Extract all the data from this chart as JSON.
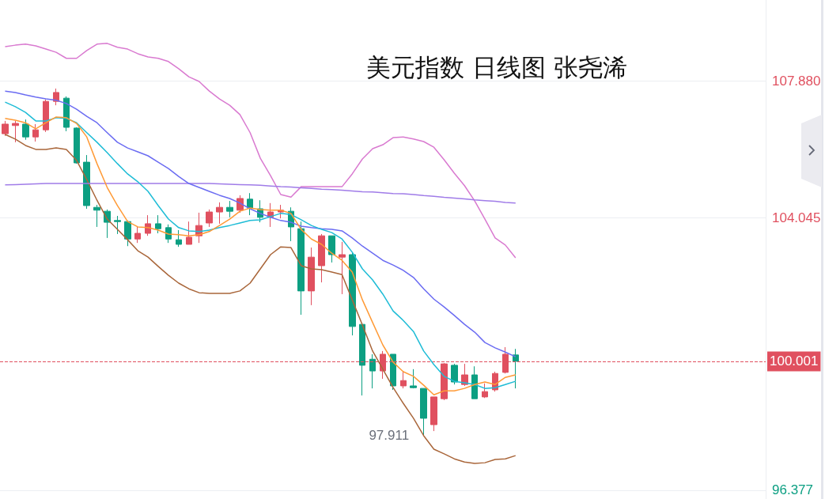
{
  "chart_data": {
    "type": "candlestick",
    "title": "美元指数 日线图 张尧浠",
    "categories": [
      null,
      null,
      null,
      null,
      null,
      null,
      null,
      null,
      null,
      null,
      null,
      null,
      null,
      null,
      null,
      null,
      null,
      null,
      null,
      null,
      null,
      null,
      null,
      null,
      null,
      null,
      null,
      null,
      null,
      null,
      null,
      null,
      null,
      null,
      null,
      null,
      null,
      null,
      null,
      null,
      null,
      null,
      null,
      null,
      null,
      null,
      null,
      null,
      null,
      null,
      null
    ],
    "ohlc": [
      [
        106.4,
        106.76,
        106.34,
        106.67
      ],
      [
        106.63,
        106.76,
        106.16,
        106.69
      ],
      [
        106.67,
        106.8,
        106.23,
        106.31
      ],
      [
        106.31,
        106.67,
        106.18,
        106.51
      ],
      [
        106.51,
        107.36,
        106.45,
        107.31
      ],
      [
        107.31,
        107.67,
        107.2,
        107.56
      ],
      [
        107.4,
        107.45,
        106.47,
        106.58
      ],
      [
        106.56,
        106.58,
        105.56,
        105.58
      ],
      [
        105.6,
        105.8,
        104.29,
        104.38
      ],
      [
        104.33,
        104.4,
        103.78,
        104.25
      ],
      [
        104.22,
        104.27,
        103.47,
        103.91
      ],
      [
        103.96,
        104.09,
        103.58,
        103.93
      ],
      [
        103.93,
        103.96,
        103.24,
        103.44
      ],
      [
        103.44,
        103.78,
        103.33,
        103.6
      ],
      [
        103.6,
        104.11,
        103.53,
        103.87
      ],
      [
        103.87,
        104.11,
        103.6,
        103.73
      ],
      [
        103.76,
        103.85,
        103.33,
        103.44
      ],
      [
        103.42,
        103.69,
        103.22,
        103.29
      ],
      [
        103.29,
        103.93,
        103.29,
        103.49
      ],
      [
        103.53,
        104.18,
        103.33,
        103.82
      ],
      [
        103.89,
        104.27,
        103.78,
        104.2
      ],
      [
        104.2,
        104.47,
        103.87,
        104.33
      ],
      [
        104.33,
        104.51,
        104.05,
        104.22
      ],
      [
        104.25,
        104.67,
        104.18,
        104.58
      ],
      [
        104.56,
        104.73,
        104.11,
        104.31
      ],
      [
        104.29,
        104.53,
        103.91,
        104.05
      ],
      [
        104.05,
        104.45,
        103.78,
        104.2
      ],
      [
        104.2,
        104.4,
        104.02,
        104.25
      ],
      [
        104.22,
        104.33,
        103.38,
        103.78
      ],
      [
        103.73,
        103.93,
        101.31,
        101.98
      ],
      [
        101.98,
        103.2,
        101.58,
        102.93
      ],
      [
        102.69,
        103.58,
        102.22,
        103.53
      ],
      [
        103.53,
        103.53,
        102.78,
        103.0
      ],
      [
        102.93,
        103.36,
        101.89,
        103.0
      ],
      [
        103.0,
        103.07,
        100.73,
        100.98
      ],
      [
        101.04,
        101.04,
        99.04,
        99.89
      ],
      [
        100.06,
        100.2,
        99.24,
        99.73
      ],
      [
        99.73,
        100.29,
        99.51,
        100.2
      ],
      [
        100.2,
        100.2,
        99.2,
        99.31
      ],
      [
        99.31,
        99.73,
        99.24,
        99.46
      ],
      [
        99.31,
        99.78,
        99.24,
        99.26
      ],
      [
        99.24,
        99.24,
        97.911,
        98.4
      ],
      [
        98.22,
        99.0,
        98.04,
        99.0
      ],
      [
        98.95,
        99.95,
        98.91,
        99.93
      ],
      [
        99.89,
        99.93,
        99.35,
        99.42
      ],
      [
        99.35,
        99.93,
        99.31,
        99.62
      ],
      [
        99.62,
        99.86,
        98.95,
        98.95
      ],
      [
        99.0,
        99.38,
        98.97,
        99.15
      ],
      [
        99.2,
        99.71,
        99.15,
        99.66
      ],
      [
        99.69,
        100.4,
        99.66,
        100.2
      ],
      [
        100.18,
        100.35,
        99.24,
        100.001
      ]
    ],
    "colors": [
      "#e0505f",
      "#e0505f",
      "#0c9f82",
      "#e0505f",
      "#e0505f",
      "#e0505f",
      "#0c9f82",
      "#0c9f82",
      "#0c9f82",
      "#0c9f82",
      "#0c9f82",
      "#0c9f82",
      "#0c9f82",
      "#e0505f",
      "#e0505f",
      "#0c9f82",
      "#0c9f82",
      "#0c9f82",
      "#e0505f",
      "#e0505f",
      "#e0505f",
      "#e0505f",
      "#0c9f82",
      "#e0505f",
      "#0c9f82",
      "#0c9f82",
      "#e0505f",
      "#e0505f",
      "#0c9f82",
      "#0c9f82",
      "#e0505f",
      "#e0505f",
      "#0c9f82",
      "#e0505f",
      "#0c9f82",
      "#0c9f82",
      "#0c9f82",
      "#e0505f",
      "#0c9f82",
      "#e0505f",
      "#0c9f82",
      "#0c9f82",
      "#e0505f",
      "#e0505f",
      "#0c9f82",
      "#e0505f",
      "#0c9f82",
      "#e0505f",
      "#e0505f",
      "#e0505f",
      "#0c9f82"
    ],
    "series": [
      {
        "type": "line",
        "color": "#d97ad0",
        "values": [
          108.85,
          108.89,
          108.92,
          108.87,
          108.78,
          108.69,
          108.52,
          108.52,
          108.74,
          108.92,
          108.94,
          108.83,
          108.78,
          108.65,
          108.56,
          108.52,
          108.43,
          108.23,
          108.0,
          107.87,
          107.6,
          107.38,
          107.2,
          106.94,
          106.43,
          105.71,
          105.22,
          104.69,
          104.62,
          104.91,
          104.91,
          104.91,
          104.91,
          104.91,
          105.27,
          105.69,
          105.98,
          106.09,
          106.29,
          106.31,
          106.25,
          106.18,
          106.02,
          105.67,
          105.29,
          104.94,
          104.51,
          104.0,
          103.47,
          103.27,
          102.91
        ]
      },
      {
        "type": "line",
        "color": "#a9663a",
        "values": [
          106.38,
          106.25,
          106.07,
          105.96,
          105.96,
          106.0,
          105.96,
          105.65,
          105.11,
          104.53,
          104.0,
          103.71,
          103.42,
          103.11,
          102.93,
          102.67,
          102.42,
          102.2,
          102.04,
          101.93,
          101.91,
          101.91,
          101.91,
          101.98,
          102.2,
          102.6,
          103.0,
          103.22,
          103.2,
          102.69,
          102.6,
          102.58,
          102.51,
          102.44,
          101.73,
          101.02,
          100.29,
          99.78,
          99.27,
          98.82,
          98.4,
          97.91,
          97.53,
          97.4,
          97.26,
          97.17,
          97.13,
          97.15,
          97.24,
          97.26,
          97.35
        ]
      },
      {
        "type": "line",
        "color": "#a07ce8",
        "values": [
          104.96,
          104.97,
          104.98,
          104.99,
          105.0,
          105.0,
          105.0,
          105.0,
          105.0,
          105.0,
          105.0,
          105.0,
          105.0,
          105.0,
          105.0,
          105.0,
          105.0,
          105.0,
          105.0,
          105.0,
          105.0,
          104.99,
          104.98,
          104.97,
          104.96,
          104.95,
          104.93,
          104.91,
          104.9,
          104.88,
          104.86,
          104.84,
          104.83,
          104.81,
          104.79,
          104.77,
          104.76,
          104.74,
          104.72,
          104.71,
          104.69,
          104.66,
          104.64,
          104.61,
          104.59,
          104.57,
          104.54,
          104.52,
          104.5,
          104.47,
          104.45
        ]
      },
      {
        "type": "line",
        "color": "#6b6cf2",
        "values": [
          107.6,
          107.56,
          107.49,
          107.43,
          107.38,
          107.34,
          107.25,
          107.09,
          106.89,
          106.71,
          106.43,
          106.16,
          106.0,
          105.89,
          105.78,
          105.6,
          105.42,
          105.2,
          105.0,
          104.89,
          104.78,
          104.67,
          104.58,
          104.45,
          104.29,
          104.16,
          104.05,
          103.96,
          103.91,
          103.8,
          103.76,
          103.73,
          103.71,
          103.67,
          103.47,
          103.24,
          103.04,
          102.84,
          102.71,
          102.56,
          102.36,
          102.04,
          101.75,
          101.53,
          101.29,
          101.04,
          100.82,
          100.53,
          100.38,
          100.26,
          100.13
        ]
      },
      {
        "type": "line",
        "color": "#1ebcd6",
        "values": [
          107.29,
          107.16,
          107.0,
          106.76,
          106.76,
          106.85,
          106.83,
          106.71,
          106.43,
          106.16,
          105.87,
          105.56,
          105.27,
          105.05,
          104.78,
          104.38,
          104.0,
          103.76,
          103.67,
          103.65,
          103.69,
          103.76,
          103.82,
          103.89,
          103.96,
          103.98,
          104.07,
          104.16,
          104.13,
          103.98,
          103.82,
          103.71,
          103.62,
          103.44,
          103.07,
          102.6,
          102.29,
          101.89,
          101.42,
          101.15,
          100.84,
          100.29,
          99.91,
          99.58,
          99.44,
          99.4,
          99.35,
          99.24,
          99.26,
          99.35,
          99.44
        ]
      },
      {
        "type": "line",
        "color": "#ff9a36",
        "values": [
          106.83,
          106.78,
          106.71,
          106.54,
          106.71,
          106.87,
          106.85,
          106.69,
          106.31,
          105.56,
          104.89,
          104.38,
          103.93,
          103.78,
          103.76,
          103.69,
          103.58,
          103.56,
          103.53,
          103.56,
          103.65,
          103.82,
          104.0,
          104.22,
          104.31,
          104.27,
          104.25,
          104.25,
          104.16,
          103.71,
          103.44,
          103.29,
          103.04,
          102.84,
          102.51,
          101.73,
          101.09,
          100.46,
          99.98,
          99.71,
          99.58,
          99.33,
          99.06,
          99.17,
          99.17,
          99.24,
          99.35,
          99.42,
          99.35,
          99.55,
          99.62
        ]
      }
    ],
    "marker": "none",
    "ylim": [
      96.13,
      110.16
    ],
    "yticks": [
      96.377,
      104.045,
      {
        "value": 107.88,
        "label": "107.880"
      }
    ],
    "tick_labels": "y",
    "grid": "y",
    "ref_lines": [
      {
        "axis": "y",
        "value": 100.001,
        "label": "100.001",
        "color": "#e0505f",
        "line_style": "dashed"
      }
    ],
    "annotations": [
      "97.911"
    ]
  }
}
